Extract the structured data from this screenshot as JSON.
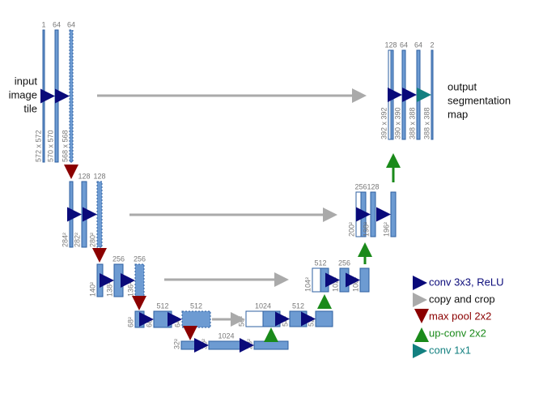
{
  "input_label": [
    "input",
    "image",
    "tile"
  ],
  "output_label": [
    "output",
    "segmentation",
    "map"
  ],
  "blocks": [
    {
      "channels": "1",
      "size": "572 x 572"
    },
    {
      "channels": "64",
      "size": "570 x 570"
    },
    {
      "channels": "64",
      "size": "568 x 568"
    },
    {
      "size": "284²"
    },
    {
      "channels": "128",
      "size": "282²"
    },
    {
      "channels": "128",
      "size": "280²"
    },
    {
      "size": "140²"
    },
    {
      "channels": "256",
      "size": "138²"
    },
    {
      "channels": "256",
      "size": "136²"
    },
    {
      "size": "68²"
    },
    {
      "channels": "512",
      "size": "66²"
    },
    {
      "channels": "512",
      "size": "64²"
    },
    {
      "size": "32²"
    },
    {
      "channels": "1024",
      "size": "30²"
    },
    {
      "size": "28²"
    },
    {
      "channels": "1024",
      "size": "56²"
    },
    {
      "channels": "512",
      "size": "54²"
    },
    {
      "size": "52²"
    },
    {
      "channels": "512",
      "size": "104²"
    },
    {
      "channels": "256",
      "size": "102²"
    },
    {
      "size": "100²"
    },
    {
      "channels": "256",
      "size": "200²"
    },
    {
      "channels": "128",
      "size": "198²"
    },
    {
      "size": "196²"
    },
    {
      "channels": "128",
      "size": "392 x 392"
    },
    {
      "channels": "64",
      "size": "390 x 390"
    },
    {
      "channels": "64",
      "size": "388 x 388"
    },
    {
      "channels": "2",
      "size": "388 x 388"
    }
  ],
  "legend": [
    "conv 3x3, ReLU",
    "copy and crop",
    "max pool 2x2",
    "up-conv 2x2",
    "conv 1x1"
  ]
}
